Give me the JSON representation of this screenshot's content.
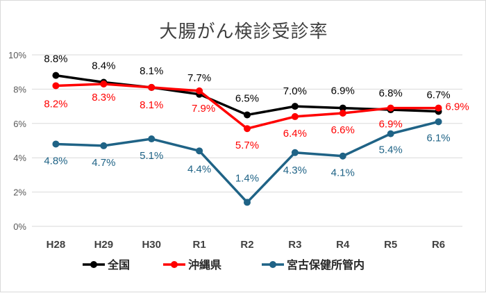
{
  "chart_data": {
    "type": "line",
    "title": "大腸がん検診受診率",
    "categories": [
      "H28",
      "H29",
      "H30",
      "R1",
      "R2",
      "R3",
      "R4",
      "R5",
      "R6"
    ],
    "y_ticks": [
      "0%",
      "2%",
      "4%",
      "6%",
      "8%",
      "10%"
    ],
    "ylim": [
      0,
      10
    ],
    "grid": true,
    "legend_position": "bottom",
    "series": [
      {
        "name": "全国",
        "color": "#000000",
        "values": [
          8.8,
          8.4,
          8.1,
          7.7,
          6.5,
          7.0,
          6.9,
          6.8,
          6.7
        ],
        "labels": [
          "8.8%",
          "8.4%",
          "8.1%",
          "7.7%",
          "6.5%",
          "7.0%",
          "6.9%",
          "6.8%",
          "6.7%"
        ]
      },
      {
        "name": "沖縄県",
        "color": "#ff0000",
        "values": [
          8.2,
          8.3,
          8.1,
          7.9,
          5.7,
          6.4,
          6.6,
          6.9,
          6.9
        ],
        "labels": [
          "8.2%",
          "8.3%",
          "8.1%",
          "7.9%",
          "5.7%",
          "6.4%",
          "6.6%",
          "6.9%",
          "6.9%"
        ]
      },
      {
        "name": "宮古保健所管内",
        "color": "#1f6386",
        "values": [
          4.8,
          4.7,
          5.1,
          4.4,
          1.4,
          4.3,
          4.1,
          5.4,
          6.1
        ],
        "labels": [
          "4.8%",
          "4.7%",
          "5.1%",
          "4.4%",
          "1.4%",
          "4.3%",
          "4.1%",
          "5.4%",
          "6.1%"
        ]
      }
    ]
  }
}
